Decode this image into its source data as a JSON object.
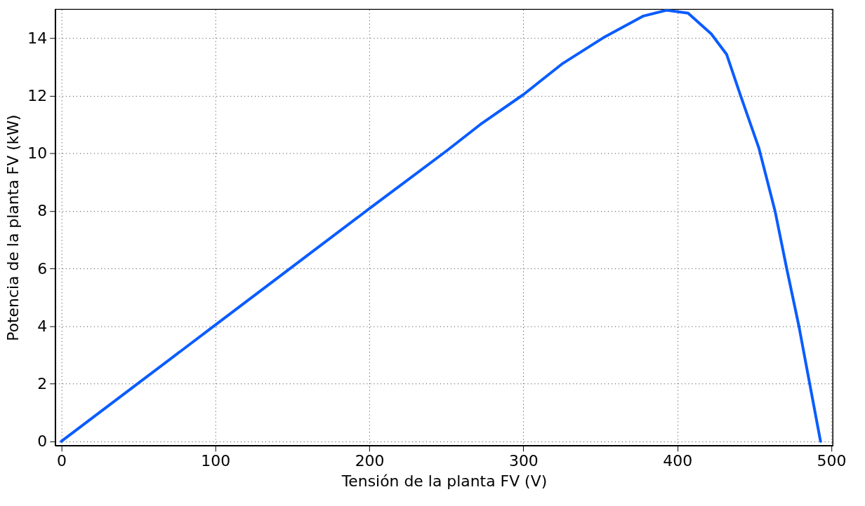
{
  "chart_data": {
    "type": "line",
    "xlabel": "Tensión de la planta FV (V)",
    "ylabel": "Potencia de la planta FV (kW)",
    "x": [
      0,
      50,
      100,
      150,
      200,
      250,
      272,
      300,
      325,
      353,
      378,
      393,
      407,
      422,
      432,
      441,
      453,
      463.5,
      471,
      479,
      486,
      493
    ],
    "series": [
      {
        "color": "#0a5cff",
        "values": [
          0,
          2.02,
          4.04,
          6.06,
          8.08,
          10.08,
          11.0,
          12.04,
          13.1,
          14.05,
          14.77,
          14.97,
          14.87,
          14.15,
          13.44,
          12.02,
          10.18,
          7.99,
          6.01,
          3.99,
          1.99,
          0
        ]
      }
    ],
    "xlim": [
      -4,
      501
    ],
    "ylim": [
      -0.15,
      15
    ],
    "xticks": [
      0,
      100,
      200,
      300,
      400,
      500
    ],
    "yticks": [
      0,
      2,
      4,
      6,
      8,
      10,
      12,
      14
    ],
    "grid": true,
    "legend": false,
    "marker": "none",
    "line_style": "solid"
  }
}
